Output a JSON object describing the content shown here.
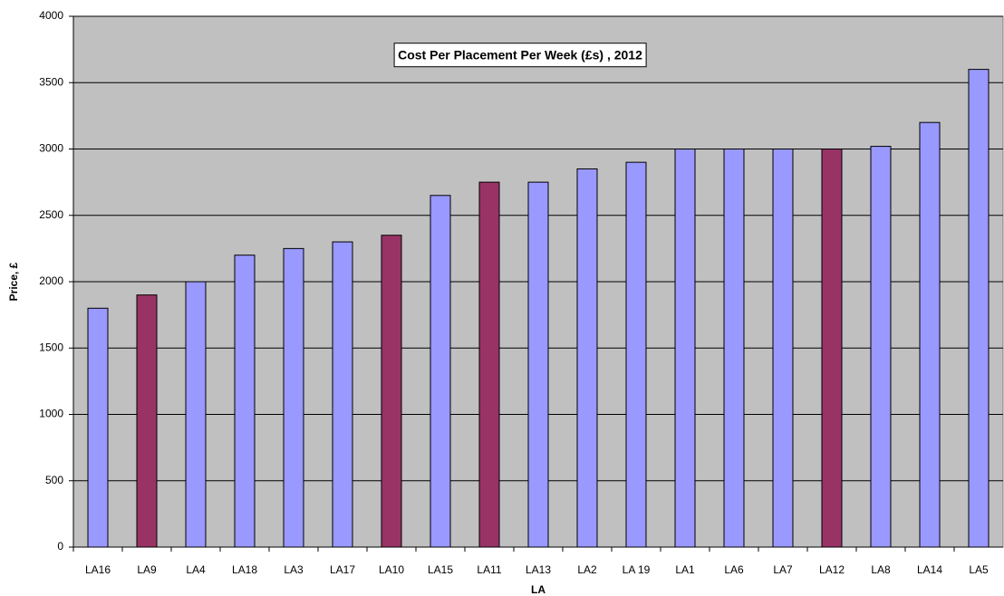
{
  "chart_data": {
    "type": "bar",
    "title": "Cost Per Placement Per Week (£s) , 2012",
    "x_label": "LA",
    "y_label": "Price, £",
    "categories": [
      "LA16",
      "LA9",
      "LA4",
      "LA18",
      "LA3",
      "LA17",
      "LA10",
      "LA15",
      "LA11",
      "LA13",
      "LA2",
      "LA 19",
      "LA1",
      "LA6",
      "LA7",
      "LA12",
      "LA8",
      "LA14",
      "LA5"
    ],
    "values": [
      1800,
      1900,
      2000,
      2200,
      2250,
      2300,
      2350,
      2650,
      2750,
      2750,
      2850,
      2900,
      3000,
      3000,
      3000,
      3000,
      3020,
      3200,
      3600
    ],
    "colors": [
      "#9999ff",
      "#993366",
      "#9999ff",
      "#9999ff",
      "#9999ff",
      "#9999ff",
      "#993366",
      "#9999ff",
      "#993366",
      "#9999ff",
      "#9999ff",
      "#9999ff",
      "#9999ff",
      "#9999ff",
      "#9999ff",
      "#993366",
      "#9999ff",
      "#9999ff",
      "#9999ff"
    ],
    "ylim": [
      0,
      4000
    ],
    "yticks": [
      0,
      500,
      1000,
      1500,
      2000,
      2500,
      3000,
      3500,
      4000
    ],
    "grid": true,
    "background": "#c0c0c0"
  }
}
